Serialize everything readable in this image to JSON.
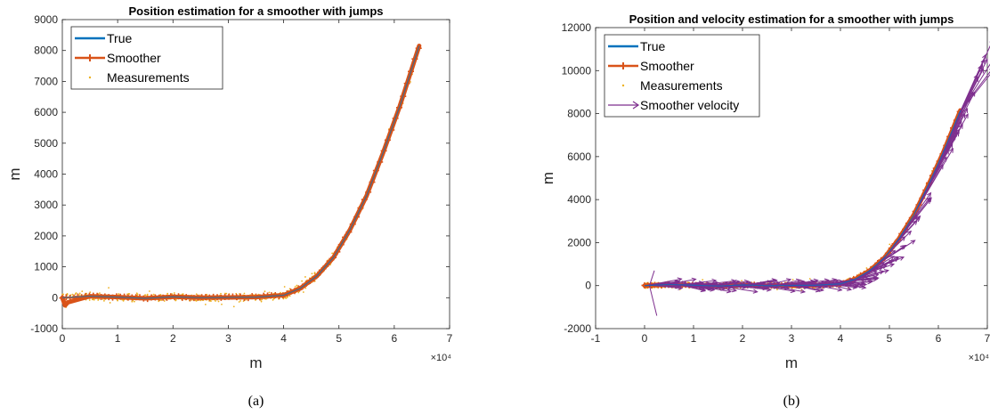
{
  "chart_data": [
    {
      "type": "line",
      "title": "Position estimation for a smoother with jumps",
      "xlabel": "m",
      "ylabel": "m",
      "x_exponent": "×10⁴",
      "xlim": [
        0,
        7
      ],
      "ylim": [
        -1000,
        9000
      ],
      "xticks": [
        0,
        1,
        2,
        3,
        4,
        5,
        6,
        7
      ],
      "yticks": [
        -1000,
        0,
        1000,
        2000,
        3000,
        4000,
        5000,
        6000,
        7000,
        8000,
        9000
      ],
      "caption": "(a)",
      "legend": {
        "position": "top-left",
        "entries": [
          "True",
          "Smoother",
          "Measurements"
        ]
      },
      "series": [
        {
          "name": "True",
          "color": "#0072BD",
          "x": [
            0,
            0.5,
            1,
            1.5,
            2,
            2.5,
            3,
            3.5,
            4,
            4.3,
            4.6,
            4.9,
            5.2,
            5.5,
            5.8,
            6.1,
            6.45
          ],
          "y": [
            0,
            50,
            20,
            -20,
            30,
            0,
            10,
            20,
            80,
            300,
            700,
            1300,
            2200,
            3300,
            4700,
            6200,
            8150
          ]
        },
        {
          "name": "Smoother",
          "color": "#D95319",
          "x": [
            0,
            0.05,
            0.1,
            0.5,
            1,
            1.5,
            2,
            2.5,
            3,
            3.5,
            4,
            4.3,
            4.6,
            4.9,
            5.2,
            5.5,
            5.8,
            6.1,
            6.45
          ],
          "y": [
            0,
            -250,
            -150,
            50,
            20,
            -20,
            30,
            0,
            10,
            20,
            80,
            300,
            700,
            1300,
            2200,
            3300,
            4700,
            6200,
            8150
          ]
        },
        {
          "name": "Measurements",
          "color": "#EDB120",
          "scatter": true
        }
      ]
    },
    {
      "type": "line",
      "title": "Position and velocity estimation for a smoother with jumps",
      "xlabel": "m",
      "ylabel": "m",
      "x_exponent": "×10⁴",
      "xlim": [
        -1,
        7
      ],
      "ylim": [
        -2000,
        12000
      ],
      "xticks": [
        -1,
        0,
        1,
        2,
        3,
        4,
        5,
        6,
        7
      ],
      "yticks": [
        -2000,
        0,
        2000,
        4000,
        6000,
        8000,
        10000,
        12000
      ],
      "caption": "(b)",
      "legend": {
        "position": "top-left",
        "entries": [
          "True",
          "Smoother",
          "Measurements",
          "Smoother velocity"
        ]
      },
      "series": [
        {
          "name": "True",
          "color": "#0072BD",
          "x": [
            0,
            0.5,
            1,
            1.5,
            2,
            2.5,
            3,
            3.5,
            4,
            4.3,
            4.6,
            4.9,
            5.2,
            5.5,
            5.8,
            6.1,
            6.45
          ],
          "y": [
            0,
            50,
            20,
            -20,
            30,
            0,
            10,
            20,
            80,
            300,
            700,
            1300,
            2200,
            3300,
            4700,
            6200,
            8150
          ]
        },
        {
          "name": "Smoother",
          "color": "#D95319",
          "x": [
            0,
            0.5,
            1,
            1.5,
            2,
            2.5,
            3,
            3.5,
            4,
            4.3,
            4.6,
            4.9,
            5.2,
            5.5,
            5.8,
            6.1,
            6.45
          ],
          "y": [
            0,
            50,
            20,
            -20,
            30,
            0,
            10,
            20,
            80,
            300,
            700,
            1300,
            2200,
            3300,
            4700,
            6200,
            8150
          ]
        },
        {
          "name": "Measurements",
          "color": "#EDB120",
          "scatter": true
        },
        {
          "name": "Smoother velocity",
          "color": "#7E2F8E",
          "quiver": true
        }
      ]
    }
  ]
}
